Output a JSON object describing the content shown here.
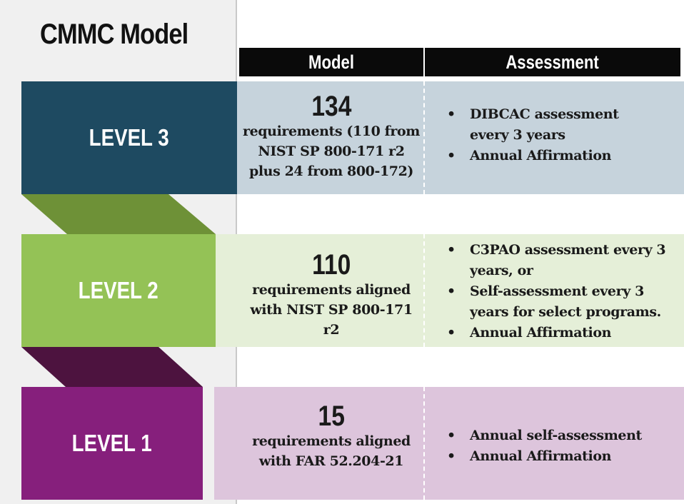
{
  "title": "CMMC Model",
  "headers": {
    "model": "Model",
    "assessment": "Assessment"
  },
  "levels": [
    {
      "label": "LEVEL 3",
      "model_number": "134",
      "model_desc_lines": [
        "requirements (110 from",
        "NIST SP 800-171 r2",
        "plus 24 from 800-172)"
      ],
      "assessment_items": [
        [
          "DIBCAC assessment",
          "every 3 years"
        ],
        [
          "Annual Affirmation"
        ]
      ],
      "colors": {
        "block": "#1e4a61",
        "row": "#c6d3dc",
        "connector": "#6e9137"
      }
    },
    {
      "label": "LEVEL 2",
      "model_number": "110",
      "model_desc_lines": [
        "requirements aligned",
        "with NIST SP 800-171",
        "r2"
      ],
      "assessment_items": [
        [
          "C3PAO assessment every 3",
          "years, or"
        ],
        [
          "Self-assessment every 3",
          "years for select programs."
        ],
        [
          "Annual Affirmation"
        ]
      ],
      "colors": {
        "block": "#94c256",
        "row": "#e5efd8",
        "connector": "#4d133f"
      }
    },
    {
      "label": "LEVEL 1",
      "model_number": "15",
      "model_desc_lines": [
        "requirements aligned",
        "with FAR 52.204-21"
      ],
      "assessment_items": [
        [
          "Annual self-assessment"
        ],
        [
          "Annual Affirmation"
        ]
      ],
      "colors": {
        "block": "#861f7c",
        "row": "#ddc5dc"
      }
    }
  ]
}
